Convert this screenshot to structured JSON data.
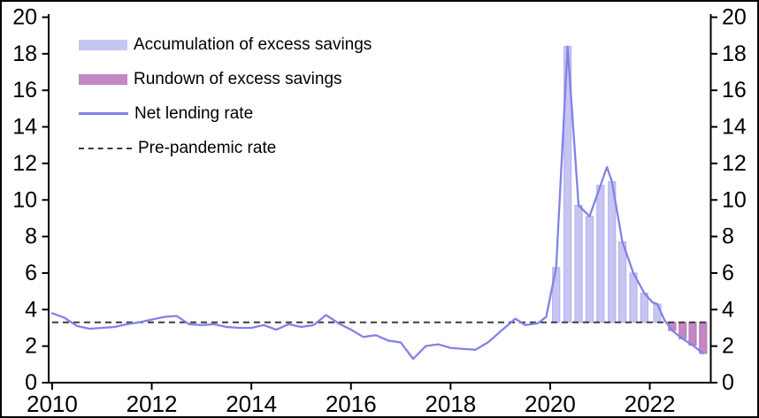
{
  "colors": {
    "background": "#ffffff",
    "frame_border": "#000000",
    "axis": "#000000",
    "accumulation_fill": "#c7c5f2",
    "accumulation_edge": "#b3b0ec",
    "rundown_fill": "#c287c4",
    "rundown_edge": "#b179b1",
    "net_lending_line": "#8282e6",
    "pre_pandemic_dash": "#3c3c3c"
  },
  "chart_data": {
    "type": "line",
    "title": "",
    "xlabel": "",
    "ylabel": "",
    "grid": false,
    "legend_position": "top-left",
    "xlim": [
      2009.93,
      2023.22
    ],
    "ylim": [
      0,
      20
    ],
    "y_ticks": [
      0,
      2,
      4,
      6,
      8,
      10,
      12,
      14,
      16,
      18,
      20
    ],
    "y_axis_sides": "both",
    "x_tick_years": [
      2010,
      2012,
      2014,
      2016,
      2018,
      2020,
      2022
    ],
    "x_tick_labels": [
      "2010",
      "2012",
      "2014",
      "2016",
      "2018",
      "2020",
      "2022"
    ],
    "legend": [
      {
        "label": "Accumulation of excess savings",
        "swatch": "bar",
        "color": "#c7c5f2"
      },
      {
        "label": "Rundown of excess savings",
        "swatch": "bar",
        "color": "#c287c4"
      },
      {
        "label": "Net lending rate",
        "swatch": "line",
        "color": "#8282e6"
      },
      {
        "label": "Pre-pandemic rate",
        "swatch": "dashed-line",
        "color": "#3c3c3c"
      }
    ],
    "pre_pandemic_rate": {
      "name": "Pre-pandemic rate",
      "value": 3.3,
      "x_start": 2010.0,
      "x_end": 2023.15
    },
    "net_lending_rate": {
      "name": "Net lending rate",
      "points": [
        [
          2010.0,
          3.8
        ],
        [
          2010.25,
          3.55
        ],
        [
          2010.5,
          3.1
        ],
        [
          2010.75,
          2.95
        ],
        [
          2011.0,
          3.0
        ],
        [
          2011.25,
          3.05
        ],
        [
          2011.5,
          3.2
        ],
        [
          2011.75,
          3.3
        ],
        [
          2012.0,
          3.45
        ],
        [
          2012.25,
          3.6
        ],
        [
          2012.5,
          3.65
        ],
        [
          2012.75,
          3.2
        ],
        [
          2013.0,
          3.15
        ],
        [
          2013.25,
          3.2
        ],
        [
          2013.5,
          3.05
        ],
        [
          2013.75,
          3.0
        ],
        [
          2014.0,
          3.0
        ],
        [
          2014.25,
          3.15
        ],
        [
          2014.5,
          2.9
        ],
        [
          2014.75,
          3.2
        ],
        [
          2015.0,
          3.05
        ],
        [
          2015.25,
          3.15
        ],
        [
          2015.5,
          3.7
        ],
        [
          2015.75,
          3.25
        ],
        [
          2016.0,
          2.9
        ],
        [
          2016.25,
          2.5
        ],
        [
          2016.5,
          2.6
        ],
        [
          2016.75,
          2.3
        ],
        [
          2017.0,
          2.2
        ],
        [
          2017.25,
          1.3
        ],
        [
          2017.5,
          2.0
        ],
        [
          2017.75,
          2.1
        ],
        [
          2018.0,
          1.9
        ],
        [
          2018.25,
          1.85
        ],
        [
          2018.5,
          1.8
        ],
        [
          2018.75,
          2.2
        ],
        [
          2019.0,
          2.8
        ],
        [
          2019.3,
          3.5
        ],
        [
          2019.5,
          3.15
        ],
        [
          2019.75,
          3.25
        ],
        [
          2019.92,
          3.6
        ],
        [
          2020.12,
          6.3
        ],
        [
          2020.35,
          18.4
        ],
        [
          2020.57,
          9.7
        ],
        [
          2020.79,
          9.1
        ],
        [
          2021.14,
          11.8
        ],
        [
          2021.24,
          11.0
        ],
        [
          2021.45,
          7.7
        ],
        [
          2021.67,
          6.0
        ],
        [
          2021.89,
          4.9
        ],
        [
          2022.05,
          4.4
        ],
        [
          2022.15,
          4.3
        ],
        [
          2022.3,
          3.4
        ],
        [
          2022.45,
          2.85
        ],
        [
          2022.66,
          2.4
        ],
        [
          2022.86,
          2.05
        ],
        [
          2023.07,
          1.6
        ]
      ]
    },
    "accumulation_of_excess_savings": {
      "name": "Accumulation of excess savings",
      "base": 3.3,
      "bar_width_years": 0.145,
      "points": [
        [
          2020.12,
          6.3
        ],
        [
          2020.35,
          18.4
        ],
        [
          2020.57,
          9.7
        ],
        [
          2020.79,
          9.1
        ],
        [
          2021.01,
          10.8
        ],
        [
          2021.24,
          11.0
        ],
        [
          2021.45,
          7.7
        ],
        [
          2021.67,
          6.0
        ],
        [
          2021.89,
          4.9
        ],
        [
          2022.15,
          4.3
        ]
      ]
    },
    "rundown_of_excess_savings": {
      "name": "Rundown of excess savings",
      "base": 3.3,
      "bar_width_years": 0.145,
      "points": [
        [
          2022.45,
          2.85
        ],
        [
          2022.66,
          2.4
        ],
        [
          2022.86,
          2.05
        ],
        [
          2023.07,
          1.6
        ]
      ]
    }
  }
}
